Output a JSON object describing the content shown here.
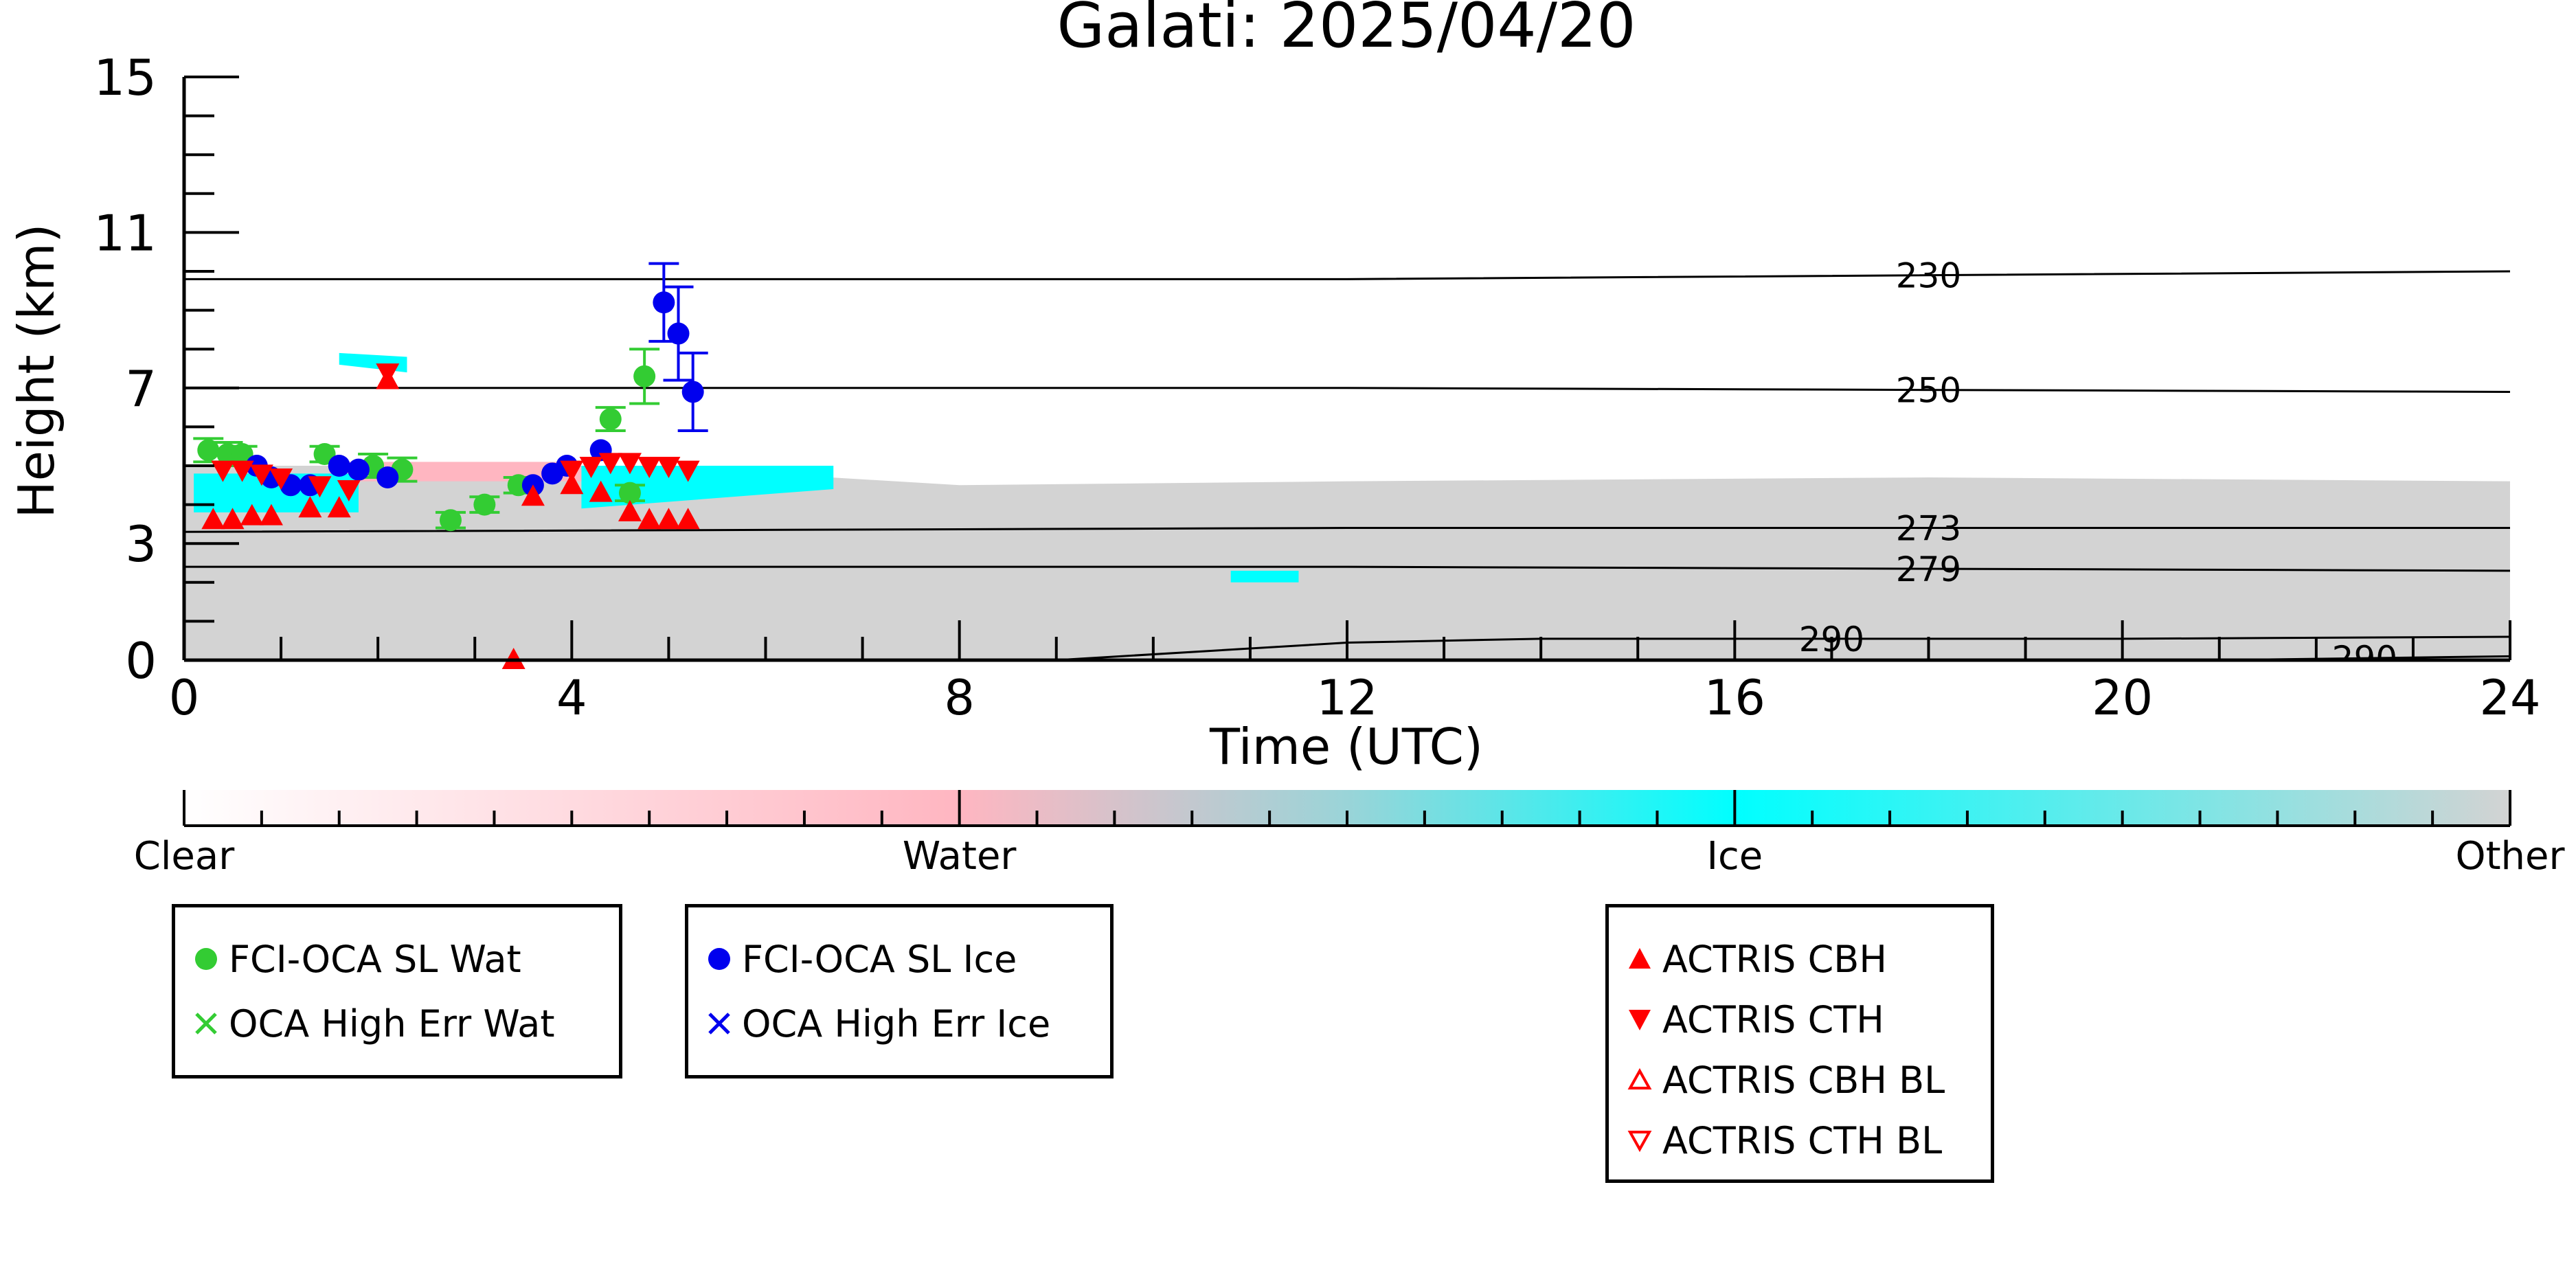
{
  "chart_data": {
    "type": "scatter",
    "title": "Galati: 2025/04/20",
    "xlabel": "Time (UTC)",
    "ylabel": "Height (km)",
    "xlim": [
      0,
      24
    ],
    "ylim": [
      0,
      15
    ],
    "x_ticks": [
      "0",
      "4",
      "8",
      "12",
      "16",
      "20",
      "24"
    ],
    "y_ticks": [
      "0",
      "3",
      "7",
      "11",
      "15"
    ],
    "temperature_contours": [
      {
        "label": "230",
        "points": [
          [
            0,
            9.8
          ],
          [
            12,
            9.8
          ],
          [
            24,
            10.0
          ]
        ]
      },
      {
        "label": "250",
        "points": [
          [
            0,
            7.0
          ],
          [
            12,
            7.0
          ],
          [
            24,
            6.9
          ]
        ]
      },
      {
        "label": "273",
        "points": [
          [
            0,
            3.3
          ],
          [
            12,
            3.4
          ],
          [
            24,
            3.4
          ]
        ]
      },
      {
        "label": "279",
        "points": [
          [
            0,
            2.4
          ],
          [
            12,
            2.4
          ],
          [
            24,
            2.3
          ]
        ]
      },
      {
        "label": "290",
        "points": [
          [
            9,
            0.0
          ],
          [
            12,
            0.45
          ],
          [
            14,
            0.55
          ],
          [
            20,
            0.55
          ],
          [
            24,
            0.6
          ]
        ]
      },
      {
        "label": "290",
        "points": [
          [
            21,
            0.0
          ],
          [
            24,
            0.1
          ]
        ]
      }
    ],
    "colorbar": {
      "labels": [
        "Clear",
        "Water",
        "Ice",
        "Other"
      ],
      "colors": [
        "#ffffff",
        "#ffb6c1",
        "#00ffff",
        "#d3d3d3"
      ]
    },
    "series": [
      {
        "name": "FCI-OCA SL Wat",
        "color": "#33cc33",
        "marker": "circle",
        "x": [
          0.25,
          0.45,
          0.6,
          1.45,
          1.95,
          2.25,
          2.75,
          3.1,
          3.45,
          4.4,
          4.6,
          4.75
        ],
        "y": [
          5.4,
          5.3,
          5.3,
          5.3,
          5.0,
          4.9,
          3.6,
          4.0,
          4.5,
          6.2,
          4.3,
          7.3
        ],
        "err": [
          0.3,
          0.3,
          0.2,
          0.2,
          0.3,
          0.3,
          0.2,
          0.2,
          0.2,
          0.3,
          0.2,
          0.7
        ]
      },
      {
        "name": "FCI-OCA SL Ice",
        "color": "#0000ee",
        "marker": "circle",
        "x": [
          0.75,
          0.9,
          1.1,
          1.3,
          1.6,
          1.8,
          2.1,
          3.6,
          3.8,
          3.95,
          4.3,
          4.95,
          5.1,
          5.25
        ],
        "y": [
          5.0,
          4.7,
          4.5,
          4.5,
          5.0,
          4.9,
          4.7,
          4.5,
          4.8,
          5.0,
          5.4,
          9.2,
          8.4,
          6.9
        ],
        "err": [
          0,
          0,
          0,
          0,
          0,
          0,
          0,
          0,
          0,
          0,
          0,
          1.0,
          1.2,
          1.0
        ]
      },
      {
        "name": "OCA High Err Wat",
        "color": "#33cc33",
        "marker": "x",
        "x": [],
        "y": []
      },
      {
        "name": "OCA High Err Ice",
        "color": "#0000ee",
        "marker": "x",
        "x": [],
        "y": []
      },
      {
        "name": "ACTRIS CBH",
        "color": "#ff0000",
        "marker": "triangle-up",
        "x": [
          0.3,
          0.5,
          0.7,
          0.9,
          1.3,
          1.6,
          2.1,
          3.4,
          3.6,
          4.0,
          4.3,
          4.6,
          4.8,
          5.0,
          5.2
        ],
        "y": [
          3.6,
          3.6,
          3.7,
          3.7,
          3.9,
          3.9,
          7.2,
          0.0,
          4.2,
          4.5,
          4.3,
          3.8,
          3.6,
          3.6,
          3.6
        ]
      },
      {
        "name": "ACTRIS CTH",
        "color": "#ff0000",
        "marker": "triangle-down",
        "x": [
          0.4,
          0.6,
          0.8,
          1.0,
          1.4,
          1.7,
          2.1,
          4.0,
          4.2,
          4.4,
          4.6,
          4.8,
          5.0,
          5.2
        ],
        "y": [
          4.9,
          4.9,
          4.8,
          4.7,
          4.5,
          4.4,
          7.4,
          4.9,
          5.0,
          5.1,
          5.1,
          5.0,
          5.0,
          4.9
        ]
      },
      {
        "name": "ACTRIS CBH BL",
        "color": "#ff0000",
        "marker": "triangle-up-open",
        "x": [],
        "y": []
      },
      {
        "name": "ACTRIS CTH BL",
        "color": "#ff0000",
        "marker": "triangle-down-open",
        "x": [],
        "y": []
      }
    ],
    "cloud_regions": [
      {
        "class": "Other",
        "polygon": [
          [
            0,
            0
          ],
          [
            24,
            0
          ],
          [
            24,
            4.6
          ],
          [
            18,
            4.7
          ],
          [
            12,
            4.6
          ],
          [
            8,
            4.5
          ],
          [
            6,
            4.8
          ],
          [
            2,
            5.0
          ],
          [
            0,
            5.0
          ]
        ]
      },
      {
        "class": "Water",
        "polygon": [
          [
            1.5,
            4.6
          ],
          [
            4,
            4.6
          ],
          [
            4,
            5.1
          ],
          [
            1.5,
            5.1
          ]
        ]
      },
      {
        "class": "Water",
        "polygon": [
          [
            4,
            4.6
          ],
          [
            6.5,
            4.6
          ],
          [
            6.5,
            5.0
          ],
          [
            4,
            5.0
          ]
        ]
      },
      {
        "class": "Ice",
        "polygon": [
          [
            0.1,
            3.8
          ],
          [
            1.8,
            3.8
          ],
          [
            1.8,
            4.8
          ],
          [
            0.1,
            4.8
          ]
        ]
      },
      {
        "class": "Ice",
        "polygon": [
          [
            4.1,
            3.9
          ],
          [
            6.7,
            4.4
          ],
          [
            6.7,
            5.0
          ],
          [
            4.1,
            5.0
          ]
        ]
      },
      {
        "class": "Ice",
        "polygon": [
          [
            1.6,
            7.6
          ],
          [
            2.3,
            7.4
          ],
          [
            2.3,
            7.8
          ],
          [
            1.6,
            7.9
          ]
        ]
      },
      {
        "class": "Ice",
        "polygon": [
          [
            10.8,
            2.0
          ],
          [
            11.5,
            2.0
          ],
          [
            11.5,
            2.3
          ],
          [
            10.8,
            2.3
          ]
        ]
      }
    ]
  },
  "legends": [
    {
      "items": [
        {
          "label": "FCI-OCA SL Wat"
        },
        {
          "label": "OCA High Err Wat"
        }
      ]
    },
    {
      "items": [
        {
          "label": "FCI-OCA SL Ice"
        },
        {
          "label": "OCA High Err Ice"
        }
      ]
    },
    {
      "items": [
        {
          "label": "ACTRIS CBH"
        },
        {
          "label": "ACTRIS CTH"
        },
        {
          "label": "ACTRIS CBH BL"
        },
        {
          "label": "ACTRIS CTH BL"
        }
      ]
    }
  ]
}
